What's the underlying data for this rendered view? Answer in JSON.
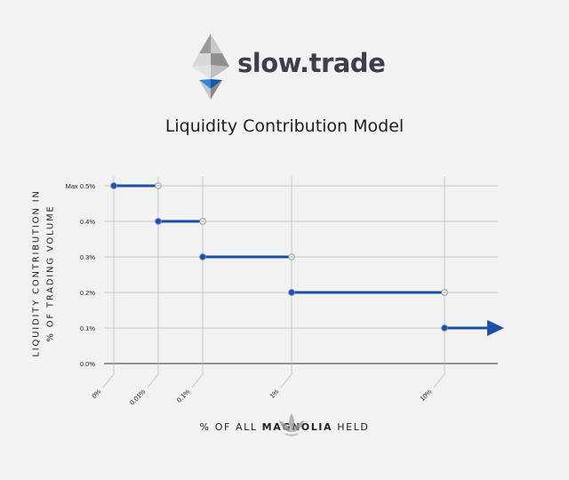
{
  "brand": {
    "name": "slow.trade"
  },
  "chart_data": {
    "type": "line",
    "title": "Liquidity Contribution Model",
    "ylabel_line1": "LIQUIDITY CONTRIBUTION IN",
    "ylabel_line2": "% OF TRADING VOLUME",
    "xlabel_prefix": "% OF ALL ",
    "xlabel_bold": "MAGNOLIA",
    "xlabel_suffix": " HELD",
    "x_ticks": [
      "0%",
      "0.01%",
      "0.1%",
      "1%",
      "10%"
    ],
    "y_ticks": [
      "0.0%",
      "0.1%",
      "0.2%",
      "0.3%",
      "0.4%",
      "Max 0.5%"
    ],
    "ylim": [
      0,
      0.5
    ],
    "grid": true,
    "steps": [
      {
        "from": "0%",
        "to": "0.01%",
        "y": 0.5
      },
      {
        "from": "0.01%",
        "to": "0.1%",
        "y": 0.4
      },
      {
        "from": "0.1%",
        "to": "1%",
        "y": 0.3
      },
      {
        "from": "1%",
        "to": "10%",
        "y": 0.2
      },
      {
        "from": "10%",
        "to": null,
        "y": 0.1
      }
    ],
    "colors": {
      "line": "#1b4fa8",
      "grid": "#bdbdbd",
      "axis": "#555555"
    }
  }
}
